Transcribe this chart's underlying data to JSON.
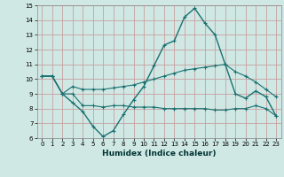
{
  "xlabel": "Humidex (Indice chaleur)",
  "xlim": [
    -0.5,
    23.5
  ],
  "ylim": [
    6,
    15
  ],
  "yticks": [
    6,
    7,
    8,
    9,
    10,
    11,
    12,
    13,
    14,
    15
  ],
  "xticks": [
    0,
    1,
    2,
    3,
    4,
    5,
    6,
    7,
    8,
    9,
    10,
    11,
    12,
    13,
    14,
    15,
    16,
    17,
    18,
    19,
    20,
    21,
    22,
    23
  ],
  "background_color": "#cfe8e4",
  "grid_color": "#c8a0a0",
  "line_color": "#1a7070",
  "line1_x": [
    0,
    1,
    2,
    3,
    4,
    5,
    6,
    7,
    8,
    9,
    10,
    11,
    12,
    13,
    14,
    15,
    16,
    17,
    18,
    19,
    20,
    21,
    22,
    23
  ],
  "line1_y": [
    10.2,
    10.2,
    9.0,
    8.4,
    7.8,
    6.8,
    6.1,
    6.5,
    7.6,
    8.6,
    9.5,
    10.9,
    12.3,
    12.6,
    14.2,
    14.8,
    13.8,
    13.0,
    11.0,
    9.0,
    8.7,
    9.2,
    8.8,
    7.5
  ],
  "line2_x": [
    0,
    1,
    2,
    3,
    4,
    5,
    6,
    7,
    8,
    9,
    10,
    11,
    12,
    13,
    14,
    15,
    16,
    17,
    18,
    19,
    20,
    21,
    22,
    23
  ],
  "line2_y": [
    10.2,
    10.2,
    9.0,
    9.5,
    9.3,
    9.3,
    9.3,
    9.4,
    9.5,
    9.6,
    9.8,
    10.0,
    10.2,
    10.4,
    10.6,
    10.7,
    10.8,
    10.9,
    11.0,
    10.5,
    10.2,
    9.8,
    9.3,
    8.8
  ],
  "line3_x": [
    0,
    1,
    2,
    3,
    4,
    5,
    6,
    7,
    8,
    9,
    10,
    11,
    12,
    13,
    14,
    15,
    16,
    17,
    18,
    19,
    20,
    21,
    22,
    23
  ],
  "line3_y": [
    10.2,
    10.2,
    9.0,
    9.0,
    8.2,
    8.2,
    8.1,
    8.2,
    8.2,
    8.1,
    8.1,
    8.1,
    8.0,
    8.0,
    8.0,
    8.0,
    8.0,
    7.9,
    7.9,
    8.0,
    8.0,
    8.2,
    8.0,
    7.5
  ]
}
